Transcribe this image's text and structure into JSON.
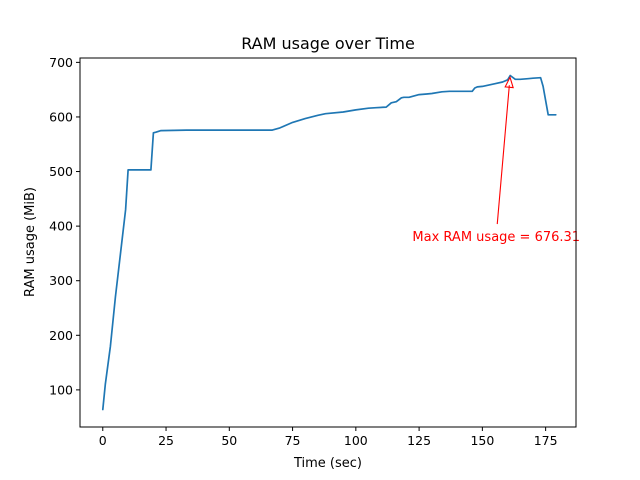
{
  "chart_data": {
    "type": "line",
    "title": "RAM usage over Time",
    "xlabel": "Time (sec)",
    "ylabel": "RAM usage (MiB)",
    "xlim": [
      -9,
      187
    ],
    "ylim": [
      32,
      708
    ],
    "xticks": [
      0,
      25,
      50,
      75,
      100,
      125,
      150,
      175
    ],
    "yticks": [
      100,
      200,
      300,
      400,
      500,
      600,
      700
    ],
    "grid": false,
    "line_color": "#1f77b4",
    "x": [
      0,
      1,
      3,
      5,
      7,
      9,
      10,
      15,
      19,
      20,
      21,
      23,
      33,
      50,
      67,
      70,
      75,
      80,
      85,
      88,
      95,
      100,
      105,
      108,
      112,
      114,
      116,
      118,
      119,
      121,
      125,
      128,
      130,
      134,
      137,
      140,
      146,
      147,
      148,
      150,
      155,
      158,
      160,
      161,
      163,
      165,
      168,
      170,
      173,
      174,
      176,
      179
    ],
    "y": [
      64,
      110,
      180,
      270,
      350,
      430,
      503,
      503,
      503,
      571,
      572,
      575,
      576,
      576,
      576,
      580,
      590,
      597,
      603,
      606,
      609,
      613,
      616,
      617,
      618,
      626,
      628,
      635,
      636,
      636,
      641,
      642,
      643,
      646,
      647,
      647,
      647,
      653,
      655,
      656,
      661,
      664,
      668,
      676,
      669,
      669,
      670,
      671,
      672,
      656,
      604,
      604
    ],
    "annotations": [
      {
        "text": "Max RAM usage = 676.31",
        "color": "#ff0000",
        "point": [
          161,
          676.31
        ],
        "text_at": [
          146,
          380
        ]
      }
    ]
  }
}
